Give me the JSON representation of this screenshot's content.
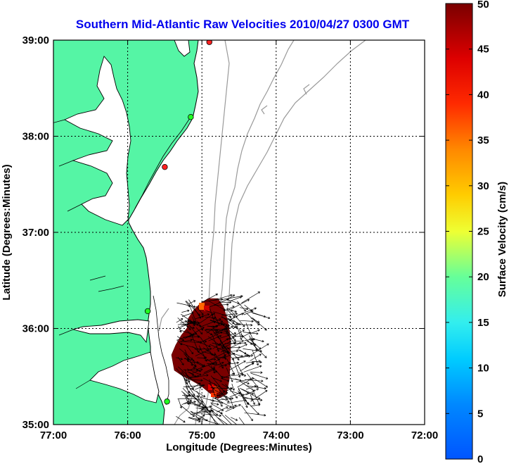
{
  "title": "Southern Mid-Atlantic Raw Velocities 2010/04/27 0300 GMT",
  "title_color": "#0000ee",
  "x_axis": {
    "label": "Longitude (Degrees:Minutes)",
    "ticks": [
      "77:00",
      "76:00",
      "75:00",
      "74:00",
      "73:00",
      "72:00"
    ],
    "range_deg_west": [
      77,
      72
    ]
  },
  "y_axis": {
    "label": "Latitude (Degrees:Minutes)",
    "ticks": [
      "39:00",
      "38:00",
      "37:00",
      "36:00",
      "35:00"
    ],
    "range_deg_north": [
      35,
      39
    ]
  },
  "grid": "dotted",
  "colorbar": {
    "label": "Surface Velocity (cm/s)",
    "ticks": [
      "0",
      "5",
      "10",
      "15",
      "20",
      "25",
      "30",
      "35",
      "40",
      "45",
      "50"
    ],
    "min": 0,
    "max": 50,
    "colormap": "jet"
  },
  "colors": {
    "land": "#55f5a5",
    "water": "#ffffff",
    "coastline": "#000000",
    "bathymetry": "#999999",
    "vectors": "#000000",
    "velocity_field": "#7a0000"
  },
  "stations": [
    {
      "lon": 74.9,
      "lat": 38.98,
      "color": "#ff2020"
    },
    {
      "lon": 75.15,
      "lat": 38.2,
      "color": "#20ff20"
    },
    {
      "lon": 75.5,
      "lat": 37.68,
      "color": "#ff2020"
    },
    {
      "lon": 75.73,
      "lat": 36.18,
      "color": "#20ff20"
    },
    {
      "lon": 75.47,
      "lat": 35.24,
      "color": "#20ff20"
    }
  ]
}
